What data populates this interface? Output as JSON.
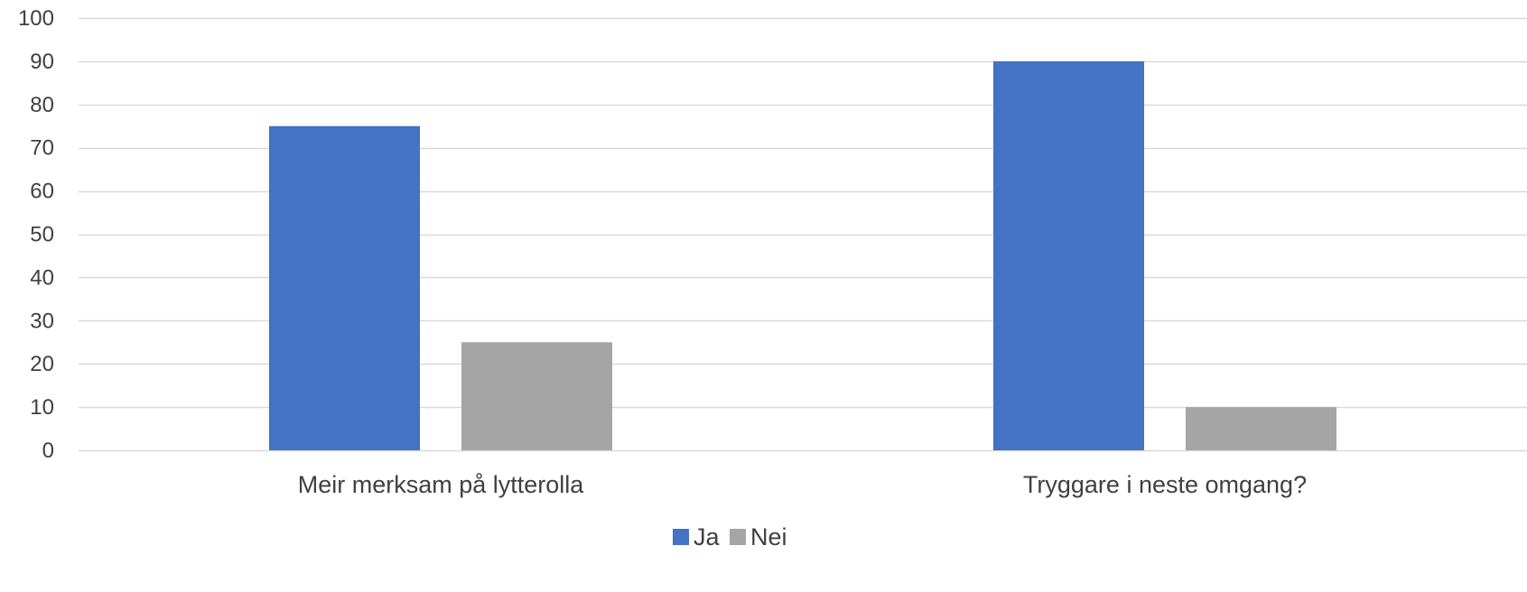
{
  "chart_data": {
    "type": "bar",
    "title": "",
    "xlabel": "",
    "ylabel": "",
    "categories": [
      "Meir merksam på lytterolla",
      "Tryggare i neste omgang?"
    ],
    "series": [
      {
        "name": "Ja",
        "values": [
          75,
          90
        ],
        "color": "#4472C4"
      },
      {
        "name": "Nei",
        "values": [
          25,
          10
        ],
        "color": "#A5A5A5"
      }
    ],
    "ylim": [
      0,
      100
    ],
    "yticks": [
      0,
      10,
      20,
      30,
      40,
      50,
      60,
      70,
      80,
      90,
      100
    ],
    "grid": true,
    "gridColor": "#D9D9D9",
    "legend": "bottom-center"
  }
}
